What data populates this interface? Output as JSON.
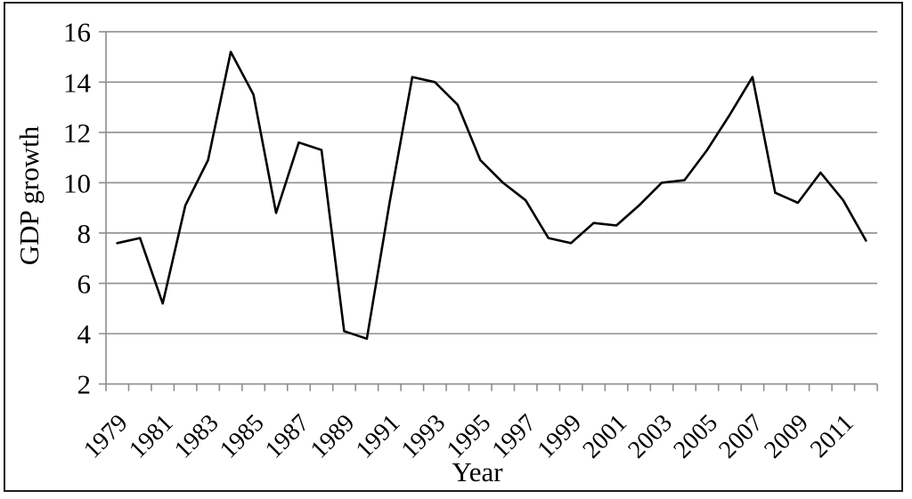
{
  "chart_data": {
    "type": "line",
    "title": "",
    "xlabel": "Year",
    "ylabel": "GDP growth",
    "x": [
      1979,
      1980,
      1981,
      1982,
      1983,
      1984,
      1985,
      1986,
      1987,
      1988,
      1989,
      1990,
      1991,
      1992,
      1993,
      1994,
      1995,
      1996,
      1997,
      1998,
      1999,
      2000,
      2001,
      2002,
      2003,
      2004,
      2005,
      2006,
      2007,
      2008,
      2009,
      2010,
      2011,
      2012
    ],
    "series": [
      {
        "name": "GDP growth",
        "values": [
          7.6,
          7.8,
          5.2,
          9.1,
          10.9,
          15.2,
          13.5,
          8.8,
          11.6,
          11.3,
          4.1,
          3.8,
          9.2,
          14.2,
          14.0,
          13.1,
          10.9,
          10.0,
          9.3,
          7.8,
          7.6,
          8.4,
          8.3,
          9.1,
          10.0,
          10.1,
          11.3,
          12.7,
          14.2,
          9.6,
          9.2,
          10.4,
          9.3,
          7.7
        ]
      }
    ],
    "ylim": [
      2,
      16
    ],
    "yticks": [
      2,
      4,
      6,
      8,
      10,
      12,
      14,
      16
    ],
    "xtick_labels": [
      "1979",
      "1981",
      "1983",
      "1985",
      "1987",
      "1989",
      "1991",
      "1993",
      "1995",
      "1997",
      "1999",
      "2001",
      "2003",
      "2005",
      "2007",
      "2009",
      "2011"
    ],
    "grid": "horizontal",
    "legend": "none",
    "line_color": "#000000",
    "grid_color": "#8e8e8e",
    "frame_color": "#1c1c1c"
  }
}
